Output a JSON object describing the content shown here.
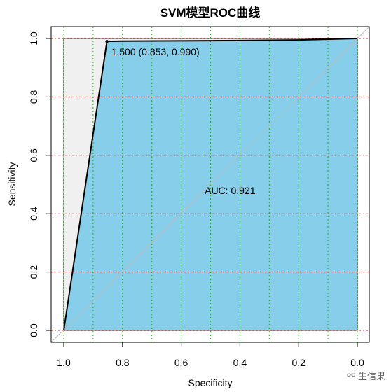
{
  "chart_data": {
    "type": "line",
    "title": "SVM模型ROC曲线",
    "xlabel": "Specificity",
    "ylabel": "Sensitivity",
    "xlim": [
      1.0,
      0.0
    ],
    "ylim": [
      0.0,
      1.0
    ],
    "x_reversed": true,
    "x_ticks": [
      1.0,
      0.8,
      0.6,
      0.4,
      0.2,
      0.0
    ],
    "x_tick_labels": [
      "1.0",
      "0.8",
      "0.6",
      "0.4",
      "0.2",
      "0.0"
    ],
    "y_ticks": [
      0.0,
      0.2,
      0.4,
      0.6,
      0.8,
      1.0
    ],
    "y_tick_labels": [
      "0.0",
      "0.2",
      "0.4",
      "0.6",
      "0.8",
      "1.0"
    ],
    "grid": true,
    "x_grid_lines": [
      1.0,
      0.9,
      0.8,
      0.7,
      0.6,
      0.5,
      0.4,
      0.3,
      0.2,
      0.1,
      0.0
    ],
    "y_grid_lines": [
      0.0,
      0.2,
      0.4,
      0.6,
      0.8,
      1.0
    ],
    "series": [
      {
        "specificity": [
          1.0,
          0.853,
          0.8,
          0.6,
          0.4,
          0.2,
          0.0
        ],
        "sensitivity": [
          0.0,
          0.99,
          0.991,
          0.992,
          0.993,
          0.995,
          1.0
        ]
      }
    ],
    "threshold_point": {
      "specificity": 0.853,
      "sensitivity": 0.99,
      "label": "1.500 (0.853, 0.990)"
    },
    "auc_label": "AUC: 0.921",
    "auc_label_pos": {
      "specificity": 0.52,
      "sensitivity": 0.48
    },
    "colors": {
      "auc_fill": "#87CEEB",
      "upper_fill": "#F0F0F0",
      "curve": "#000000",
      "x_grid": "#22AA22",
      "y_grid": "#CC2222",
      "diagonal": "#BBBBBB"
    }
  },
  "watermark": {
    "icon": "wechat-icon",
    "text": "生信果"
  }
}
